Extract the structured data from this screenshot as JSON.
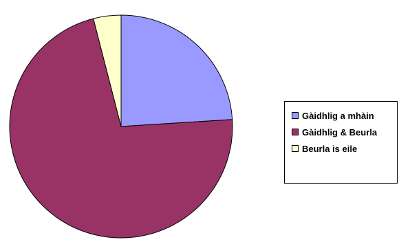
{
  "chart_data": {
    "type": "pie",
    "categories": [
      "Gàidhlig a mhàin",
      "Gàidhlig & Beurla",
      "Beurla is eile"
    ],
    "values": [
      24,
      72,
      4
    ],
    "colors": [
      "#9999ff",
      "#993366",
      "#ffffcc"
    ],
    "legend_position": "right"
  }
}
